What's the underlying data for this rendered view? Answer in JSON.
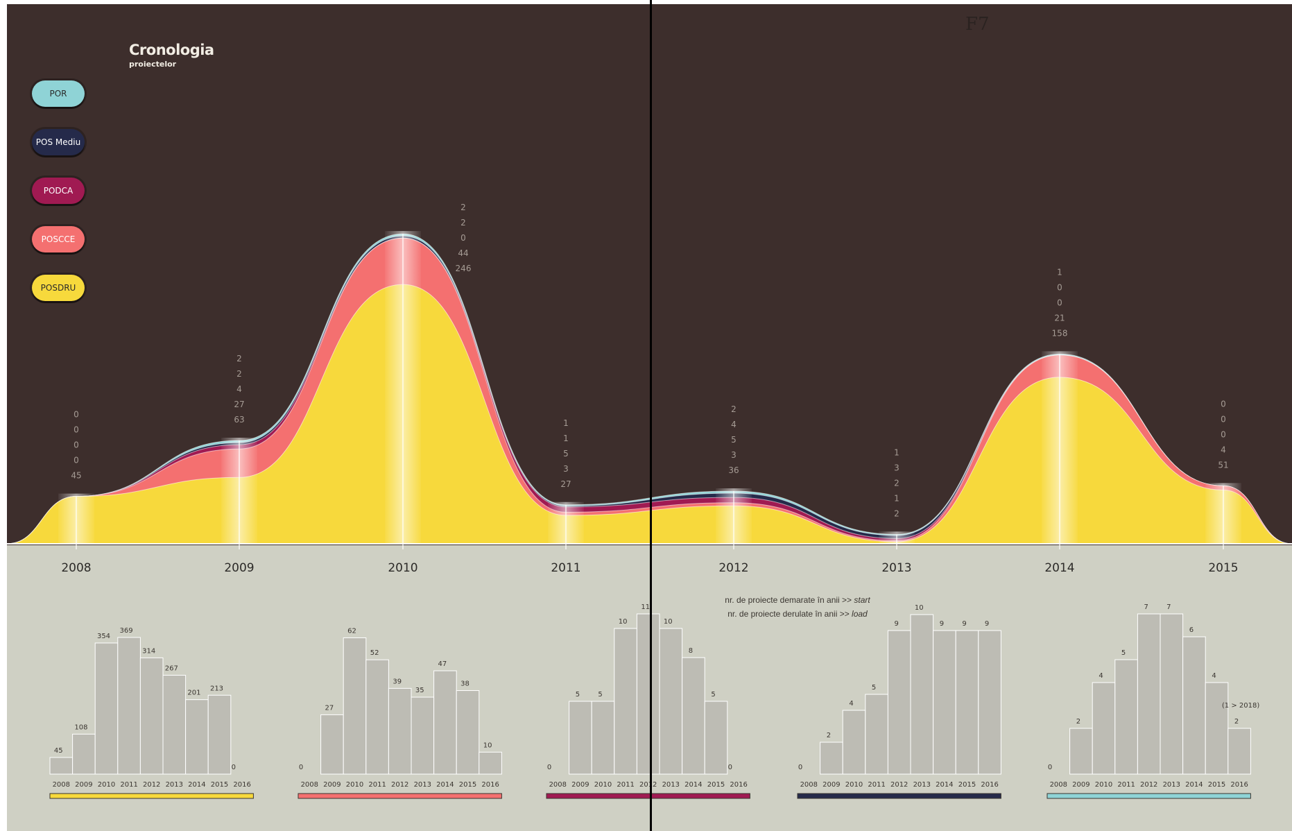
{
  "title": {
    "main": "Cronologia",
    "sub": "proiectelor"
  },
  "page_label": "F7",
  "note": {
    "line1_prefix": "nr. de proiecte demarate în anii >> ",
    "line1_em": "start",
    "line2_prefix": "nr. de proiecte derulate în anii >> ",
    "line2_em": "load"
  },
  "legend": [
    {
      "label": "POR",
      "bg": "#8fd3d6",
      "fg": "#2a2a2a"
    },
    {
      "label": "POS Mediu",
      "bg": "#252a4a",
      "fg": "#ffffff"
    },
    {
      "label": "PODCA",
      "bg": "#a01a52",
      "fg": "#ffffff"
    },
    {
      "label": "POSCCE",
      "bg": "#f47070",
      "fg": "#ffffff"
    },
    {
      "label": "POSDRU",
      "bg": "#f7d93c",
      "fg": "#2a2a2a"
    }
  ],
  "colors": {
    "background_dark": "#3d2e2c",
    "background_light": "#cfd0c4",
    "POR": "#8fd3d6",
    "POS Mediu": "#252a4a",
    "PODCA": "#a01a52",
    "POSCCE": "#f47070",
    "POSDRU": "#f7d93c",
    "bar_fill": "#bdbcb4"
  },
  "chart_data": [
    {
      "type": "area",
      "stacking": "stacked",
      "x": [
        "2008",
        "2009",
        "2010",
        "2011",
        "2012",
        "2013",
        "2014",
        "2015"
      ],
      "series": [
        {
          "name": "POSDRU",
          "values": [
            45,
            63,
            246,
            27,
            36,
            2,
            158,
            51
          ]
        },
        {
          "name": "POSCCE",
          "values": [
            0,
            27,
            44,
            3,
            3,
            1,
            21,
            4
          ]
        },
        {
          "name": "PODCA",
          "values": [
            0,
            4,
            0,
            5,
            5,
            2,
            0,
            0
          ]
        },
        {
          "name": "POS Mediu",
          "values": [
            0,
            2,
            2,
            1,
            4,
            3,
            0,
            0
          ]
        },
        {
          "name": "POR",
          "values": [
            0,
            2,
            2,
            1,
            2,
            1,
            1,
            0
          ]
        }
      ],
      "value_label_order": [
        "POR",
        "POS Mediu",
        "PODCA",
        "POSCCE",
        "POSDRU"
      ],
      "grid": false
    },
    {
      "type": "bar",
      "series_name": "POSDRU",
      "color": "#f7d93c",
      "categories": [
        "2008",
        "2009",
        "2010",
        "2011",
        "2012",
        "2013",
        "2014",
        "2015",
        "2016"
      ],
      "values": [
        45,
        108,
        354,
        369,
        314,
        267,
        201,
        213,
        0
      ]
    },
    {
      "type": "bar",
      "series_name": "POSCCE",
      "color": "#f47070",
      "categories": [
        "2008",
        "2009",
        "2010",
        "2011",
        "2012",
        "2013",
        "2014",
        "2015",
        "2016"
      ],
      "values": [
        0,
        27,
        62,
        52,
        39,
        35,
        47,
        38,
        10
      ]
    },
    {
      "type": "bar",
      "series_name": "PODCA",
      "color": "#a01a52",
      "categories": [
        "2008",
        "2009",
        "2010",
        "2011",
        "2012",
        "2013",
        "2014",
        "2015",
        "2016"
      ],
      "values": [
        0,
        5,
        5,
        10,
        11,
        10,
        8,
        5,
        0
      ]
    },
    {
      "type": "bar",
      "series_name": "POS Mediu",
      "color": "#252a4a",
      "categories": [
        "2008",
        "2009",
        "2010",
        "2011",
        "2012",
        "2013",
        "2014",
        "2015",
        "2016"
      ],
      "values": [
        0,
        2,
        4,
        5,
        9,
        10,
        9,
        9,
        9
      ]
    },
    {
      "type": "bar",
      "series_name": "POR",
      "color": "#8fd3d6",
      "categories": [
        "2008",
        "2009",
        "2010",
        "2011",
        "2012",
        "2013",
        "2014",
        "2015",
        "2016"
      ],
      "values": [
        0,
        2,
        4,
        5,
        7,
        7,
        6,
        4,
        2
      ],
      "annotation": "(1 > 2018)"
    }
  ]
}
